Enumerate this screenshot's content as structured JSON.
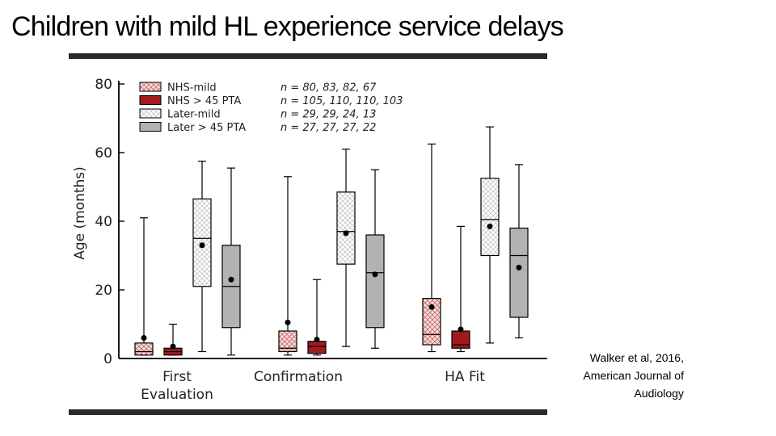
{
  "slide": {
    "title": "Children with mild HL experience service delays",
    "citation": [
      "Walker et al, 2016,",
      "American Journal of",
      "Audiology"
    ]
  },
  "colors": {
    "nhs_mild_fill": "#f6dede",
    "nhs_mild_hatch": "#c46666",
    "nhs_severe": "#a3191e",
    "later_mild_fill": "#ffffff",
    "later_mild_hatch": "#bbbbbb",
    "later_severe": "#b2b2b2",
    "rule": "#2a2a2a"
  },
  "chart_data": {
    "type": "box",
    "ylabel": "Age (months)",
    "ylim": [
      0,
      80
    ],
    "yticks": [
      0,
      20,
      40,
      60,
      80
    ],
    "categories": [
      [
        "First",
        "Evaluation"
      ],
      [
        "Confirmation"
      ],
      [
        "HA Fit"
      ]
    ],
    "legend_position": "top-left",
    "series": [
      {
        "name": "NHS-mild",
        "n": "n = 80, 83, 82, 67",
        "style": "crosshatch-red",
        "boxes": [
          {
            "whisker_low": 1,
            "q1": 1,
            "median": 2,
            "q3": 4.5,
            "whisker_high": 41,
            "mean": 6
          },
          {
            "whisker_low": 1,
            "q1": 2,
            "median": 3,
            "q3": 8,
            "whisker_high": 53,
            "mean": 10.5
          },
          {
            "whisker_low": 2,
            "q1": 4,
            "median": 7,
            "q3": 17.5,
            "whisker_high": 62.5,
            "mean": 15
          }
        ]
      },
      {
        "name": "NHS > 45 PTA",
        "n": "n = 105, 110, 110, 103",
        "style": "solid-red",
        "boxes": [
          {
            "whisker_low": 1,
            "q1": 1,
            "median": 2,
            "q3": 3,
            "whisker_high": 10,
            "mean": 3.5
          },
          {
            "whisker_low": 1,
            "q1": 1.5,
            "median": 3.5,
            "q3": 5,
            "whisker_high": 23,
            "mean": 5.5
          },
          {
            "whisker_low": 2,
            "q1": 3,
            "median": 4,
            "q3": 8,
            "whisker_high": 38.5,
            "mean": 8.5
          }
        ]
      },
      {
        "name": "Later-mild",
        "n": "n = 29, 29, 24, 13",
        "style": "crosshatch-light",
        "boxes": [
          {
            "whisker_low": 2,
            "q1": 21,
            "median": 35,
            "q3": 46.5,
            "whisker_high": 57.5,
            "mean": 33
          },
          {
            "whisker_low": 3.5,
            "q1": 27.5,
            "median": 37,
            "q3": 48.5,
            "whisker_high": 61,
            "mean": 36.5
          },
          {
            "whisker_low": 4.5,
            "q1": 30,
            "median": 40.5,
            "q3": 52.5,
            "whisker_high": 67.5,
            "mean": 38.5
          }
        ]
      },
      {
        "name": "Later > 45 PTA",
        "n": "n = 27, 27, 27, 22",
        "style": "solid-gray",
        "boxes": [
          {
            "whisker_low": 1,
            "q1": 9,
            "median": 21,
            "q3": 33,
            "whisker_high": 55.5,
            "mean": 23
          },
          {
            "whisker_low": 3,
            "q1": 9,
            "median": 25,
            "q3": 36,
            "whisker_high": 55,
            "mean": 24.5
          },
          {
            "whisker_low": 6,
            "q1": 12,
            "median": 30,
            "q3": 38,
            "whisker_high": 56.5,
            "mean": 26.5
          }
        ]
      }
    ]
  }
}
